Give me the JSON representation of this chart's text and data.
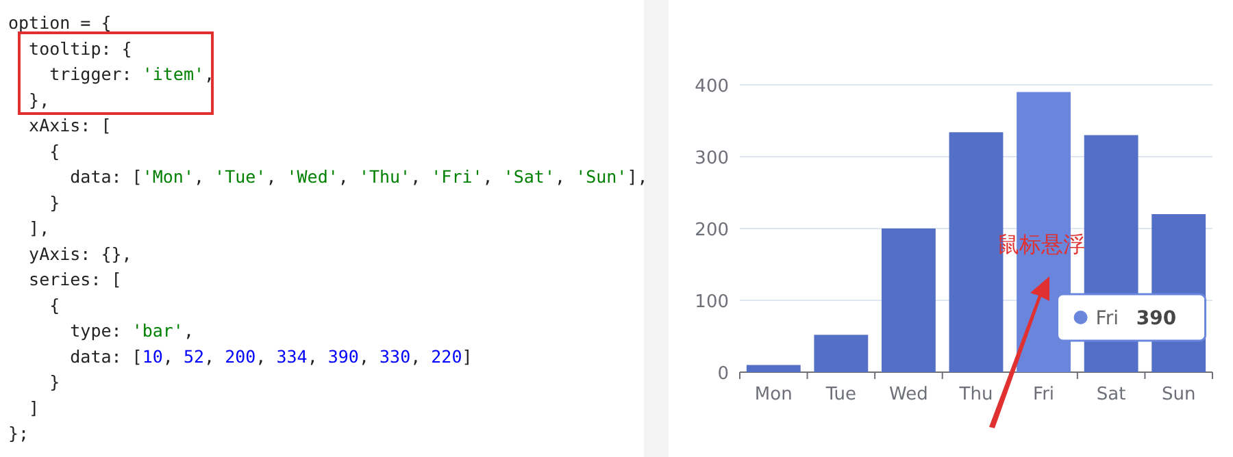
{
  "chart_data": {
    "type": "bar",
    "categories": [
      "Mon",
      "Tue",
      "Wed",
      "Thu",
      "Fri",
      "Sat",
      "Sun"
    ],
    "values": [
      10,
      52,
      200,
      334,
      390,
      330,
      220
    ],
    "colors": [
      "#5470c6",
      "#5470c6",
      "#5470c6",
      "#5470c6",
      "#6a86dc",
      "#5470c6",
      "#5470c6"
    ],
    "ylim": [
      0,
      400
    ],
    "yticks": [
      0,
      100,
      200,
      300,
      400
    ],
    "grid": "y",
    "annotations": [
      "option = {",
      "  tooltip: {",
      "    trigger: 'item',",
      "  },",
      "  xAxis: [",
      "    {",
      "      data: ['Mon', 'Tue', 'Wed', 'Thu', 'Fri', 'Sat', 'Sun'],",
      "    }",
      "  ],",
      "  yAxis: {},",
      "  series: [",
      "    {",
      "      type: 'bar',",
      "      data: [10, 52, 200, 334, 390, 330, 220]",
      "    }",
      "  ]",
      "};",
      "鼠标悬浮",
      "Fri 390"
    ]
  }
}
